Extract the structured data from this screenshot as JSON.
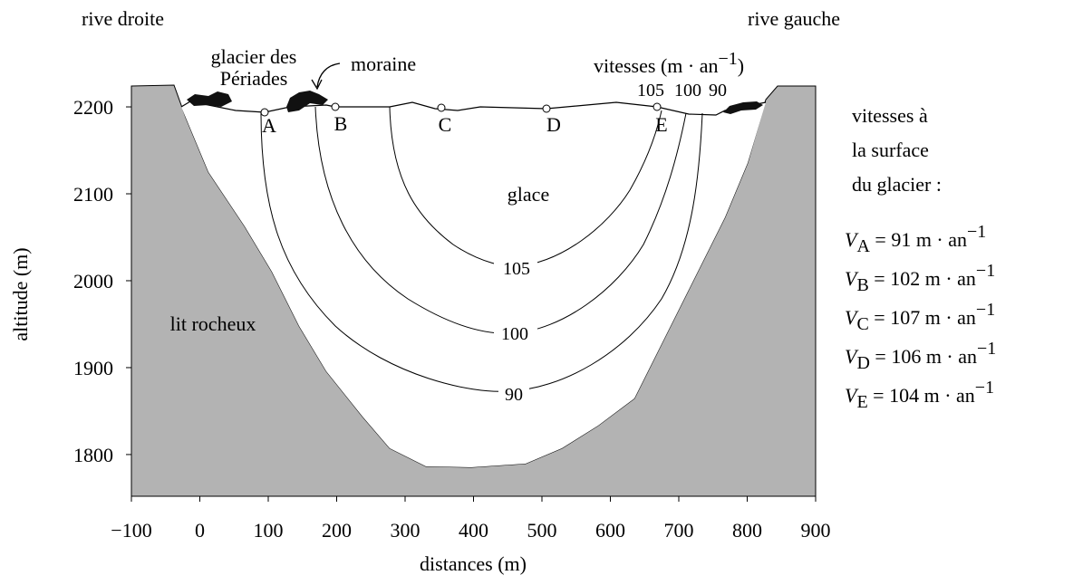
{
  "chart_data": {
    "type": "cross-section",
    "x_label": "distances (m)",
    "y_label": "altitude (m)",
    "xlim": [
      -100,
      900
    ],
    "ylim": [
      1752,
      2224
    ],
    "xticks": [
      {
        "value": -100,
        "label": "−100"
      },
      0,
      100,
      200,
      300,
      400,
      500,
      600,
      700,
      800,
      900
    ],
    "yticks": [
      1800,
      1900,
      2000,
      2100,
      2200
    ],
    "bank_left": "rive droite",
    "bank_right": "rive gauche",
    "glacier_name": [
      "glacier des",
      "Périades"
    ],
    "moraine": "moraine",
    "speeds_header": {
      "text": "vitesses (m · an",
      "exponent": "−1",
      "close": ")"
    },
    "top_contour_labels": [
      "105",
      "100",
      "90"
    ],
    "points": [
      "A",
      "B",
      "C",
      "D",
      "E"
    ],
    "ice": "glace",
    "bedrock": "lit rocheux",
    "contour_labels": [
      "105",
      "100",
      "90"
    ],
    "legend_lines": [
      "vitesses à",
      "la surface",
      "du glacier :"
    ],
    "surface_speeds": [
      {
        "symbol": "V",
        "subscript": "A",
        "text": " = 91 m · an",
        "exponent": "−1"
      },
      {
        "symbol": "V",
        "subscript": "B",
        "text": " = 102 m · an",
        "exponent": "−1"
      },
      {
        "symbol": "V",
        "subscript": "C",
        "text": " = 107 m · an",
        "exponent": "−1"
      },
      {
        "symbol": "V",
        "subscript": "D",
        "text": " = 106 m · an",
        "exponent": "−1"
      },
      {
        "symbol": "V",
        "subscript": "E",
        "text": " = 104 m · an",
        "exponent": "−1"
      }
    ]
  }
}
